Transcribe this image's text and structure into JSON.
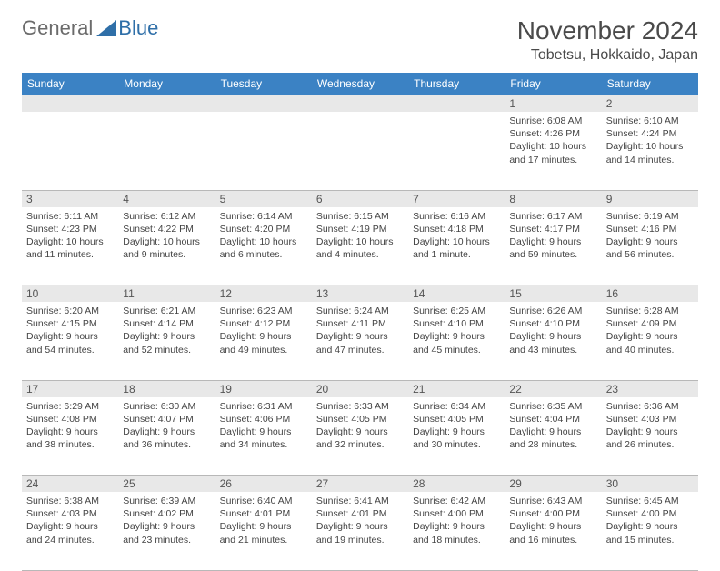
{
  "logo": {
    "text1": "General",
    "text2": "Blue"
  },
  "title": "November 2024",
  "location": "Tobetsu, Hokkaido, Japan",
  "colors": {
    "header_bg": "#3b82c4",
    "header_fg": "#ffffff",
    "spacer_bg": "#e8e8e8",
    "text": "#444444",
    "border": "#b8b8b8"
  },
  "day_headers": [
    "Sunday",
    "Monday",
    "Tuesday",
    "Wednesday",
    "Thursday",
    "Friday",
    "Saturday"
  ],
  "weeks": [
    [
      null,
      null,
      null,
      null,
      null,
      {
        "n": "1",
        "sr": "Sunrise: 6:08 AM",
        "ss": "Sunset: 4:26 PM",
        "dl": "Daylight: 10 hours and 17 minutes."
      },
      {
        "n": "2",
        "sr": "Sunrise: 6:10 AM",
        "ss": "Sunset: 4:24 PM",
        "dl": "Daylight: 10 hours and 14 minutes."
      }
    ],
    [
      {
        "n": "3",
        "sr": "Sunrise: 6:11 AM",
        "ss": "Sunset: 4:23 PM",
        "dl": "Daylight: 10 hours and 11 minutes."
      },
      {
        "n": "4",
        "sr": "Sunrise: 6:12 AM",
        "ss": "Sunset: 4:22 PM",
        "dl": "Daylight: 10 hours and 9 minutes."
      },
      {
        "n": "5",
        "sr": "Sunrise: 6:14 AM",
        "ss": "Sunset: 4:20 PM",
        "dl": "Daylight: 10 hours and 6 minutes."
      },
      {
        "n": "6",
        "sr": "Sunrise: 6:15 AM",
        "ss": "Sunset: 4:19 PM",
        "dl": "Daylight: 10 hours and 4 minutes."
      },
      {
        "n": "7",
        "sr": "Sunrise: 6:16 AM",
        "ss": "Sunset: 4:18 PM",
        "dl": "Daylight: 10 hours and 1 minute."
      },
      {
        "n": "8",
        "sr": "Sunrise: 6:17 AM",
        "ss": "Sunset: 4:17 PM",
        "dl": "Daylight: 9 hours and 59 minutes."
      },
      {
        "n": "9",
        "sr": "Sunrise: 6:19 AM",
        "ss": "Sunset: 4:16 PM",
        "dl": "Daylight: 9 hours and 56 minutes."
      }
    ],
    [
      {
        "n": "10",
        "sr": "Sunrise: 6:20 AM",
        "ss": "Sunset: 4:15 PM",
        "dl": "Daylight: 9 hours and 54 minutes."
      },
      {
        "n": "11",
        "sr": "Sunrise: 6:21 AM",
        "ss": "Sunset: 4:14 PM",
        "dl": "Daylight: 9 hours and 52 minutes."
      },
      {
        "n": "12",
        "sr": "Sunrise: 6:23 AM",
        "ss": "Sunset: 4:12 PM",
        "dl": "Daylight: 9 hours and 49 minutes."
      },
      {
        "n": "13",
        "sr": "Sunrise: 6:24 AM",
        "ss": "Sunset: 4:11 PM",
        "dl": "Daylight: 9 hours and 47 minutes."
      },
      {
        "n": "14",
        "sr": "Sunrise: 6:25 AM",
        "ss": "Sunset: 4:10 PM",
        "dl": "Daylight: 9 hours and 45 minutes."
      },
      {
        "n": "15",
        "sr": "Sunrise: 6:26 AM",
        "ss": "Sunset: 4:10 PM",
        "dl": "Daylight: 9 hours and 43 minutes."
      },
      {
        "n": "16",
        "sr": "Sunrise: 6:28 AM",
        "ss": "Sunset: 4:09 PM",
        "dl": "Daylight: 9 hours and 40 minutes."
      }
    ],
    [
      {
        "n": "17",
        "sr": "Sunrise: 6:29 AM",
        "ss": "Sunset: 4:08 PM",
        "dl": "Daylight: 9 hours and 38 minutes."
      },
      {
        "n": "18",
        "sr": "Sunrise: 6:30 AM",
        "ss": "Sunset: 4:07 PM",
        "dl": "Daylight: 9 hours and 36 minutes."
      },
      {
        "n": "19",
        "sr": "Sunrise: 6:31 AM",
        "ss": "Sunset: 4:06 PM",
        "dl": "Daylight: 9 hours and 34 minutes."
      },
      {
        "n": "20",
        "sr": "Sunrise: 6:33 AM",
        "ss": "Sunset: 4:05 PM",
        "dl": "Daylight: 9 hours and 32 minutes."
      },
      {
        "n": "21",
        "sr": "Sunrise: 6:34 AM",
        "ss": "Sunset: 4:05 PM",
        "dl": "Daylight: 9 hours and 30 minutes."
      },
      {
        "n": "22",
        "sr": "Sunrise: 6:35 AM",
        "ss": "Sunset: 4:04 PM",
        "dl": "Daylight: 9 hours and 28 minutes."
      },
      {
        "n": "23",
        "sr": "Sunrise: 6:36 AM",
        "ss": "Sunset: 4:03 PM",
        "dl": "Daylight: 9 hours and 26 minutes."
      }
    ],
    [
      {
        "n": "24",
        "sr": "Sunrise: 6:38 AM",
        "ss": "Sunset: 4:03 PM",
        "dl": "Daylight: 9 hours and 24 minutes."
      },
      {
        "n": "25",
        "sr": "Sunrise: 6:39 AM",
        "ss": "Sunset: 4:02 PM",
        "dl": "Daylight: 9 hours and 23 minutes."
      },
      {
        "n": "26",
        "sr": "Sunrise: 6:40 AM",
        "ss": "Sunset: 4:01 PM",
        "dl": "Daylight: 9 hours and 21 minutes."
      },
      {
        "n": "27",
        "sr": "Sunrise: 6:41 AM",
        "ss": "Sunset: 4:01 PM",
        "dl": "Daylight: 9 hours and 19 minutes."
      },
      {
        "n": "28",
        "sr": "Sunrise: 6:42 AM",
        "ss": "Sunset: 4:00 PM",
        "dl": "Daylight: 9 hours and 18 minutes."
      },
      {
        "n": "29",
        "sr": "Sunrise: 6:43 AM",
        "ss": "Sunset: 4:00 PM",
        "dl": "Daylight: 9 hours and 16 minutes."
      },
      {
        "n": "30",
        "sr": "Sunrise: 6:45 AM",
        "ss": "Sunset: 4:00 PM",
        "dl": "Daylight: 9 hours and 15 minutes."
      }
    ]
  ]
}
